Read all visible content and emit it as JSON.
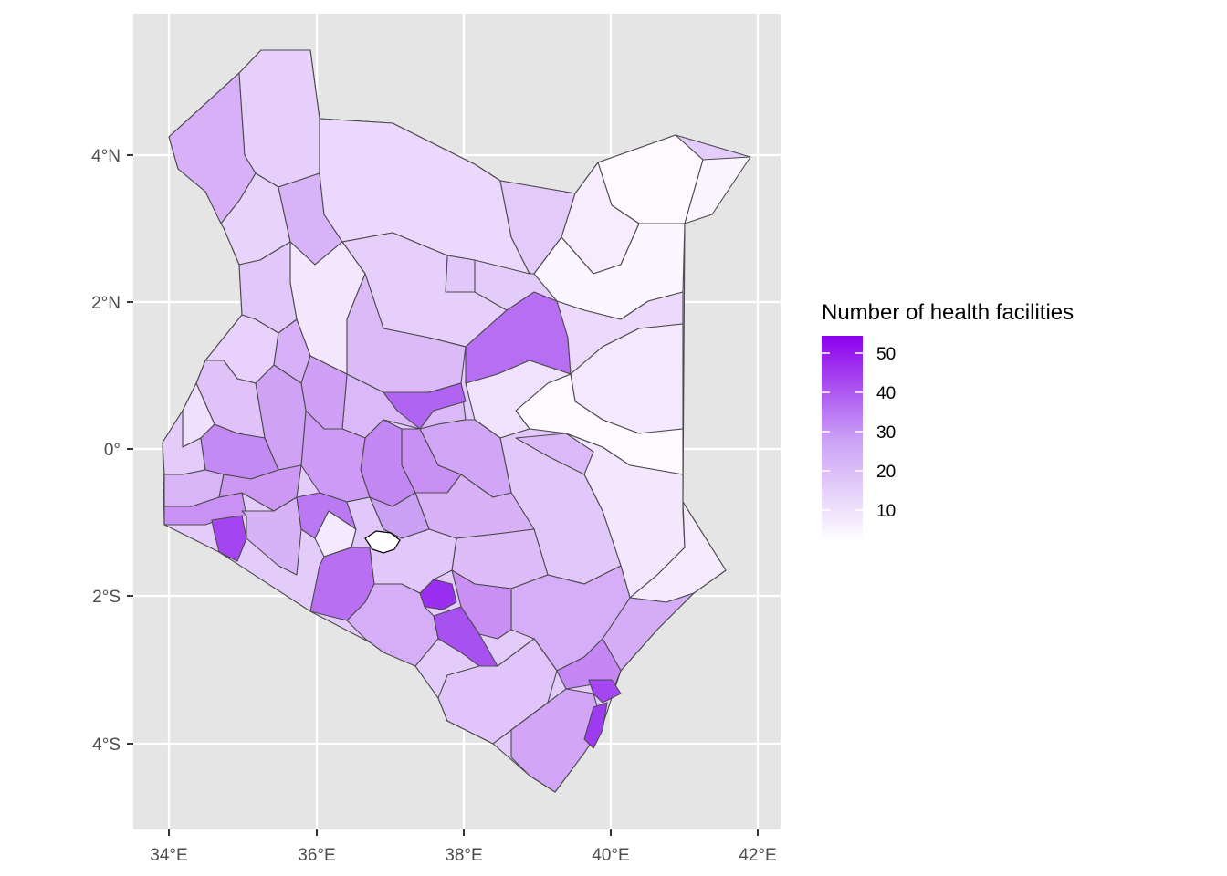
{
  "map": {
    "x_ticks": [
      "34°E",
      "36°E",
      "38°E",
      "40°E",
      "42°E"
    ],
    "y_ticks": [
      "4°N",
      "2°N",
      "0°",
      "2°S",
      "4°S"
    ],
    "x_values": [
      34,
      36,
      38,
      40,
      42
    ],
    "y_values": [
      4,
      2,
      0,
      -2,
      -4
    ],
    "panel_background": "#e5e5e5",
    "fill_low": "#ffffff",
    "fill_high": "#8b00ec"
  },
  "legend": {
    "title": "Number of health facilities",
    "labels": [
      "50",
      "40",
      "30",
      "20",
      "10"
    ],
    "values": [
      50,
      40,
      30,
      20,
      10
    ],
    "range": [
      1,
      55
    ]
  }
}
